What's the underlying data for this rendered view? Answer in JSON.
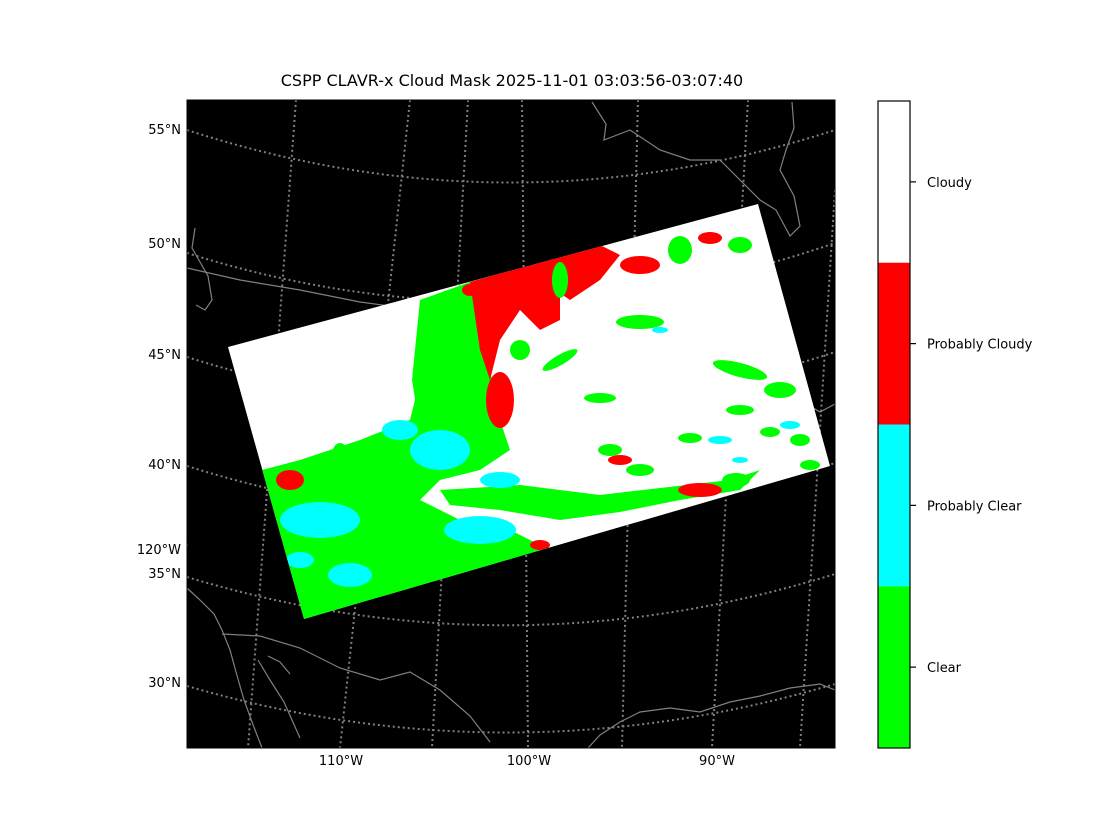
{
  "title": "CSPP CLAVR-x Cloud Mask 2025-11-01 03:03:56-03:07:40",
  "map": {
    "background_color": "#000000",
    "graticule_color": "#808080",
    "border_color": "#808080",
    "lat_labels": [
      "55°N",
      "50°N",
      "45°N",
      "40°N",
      "35°N",
      "30°N"
    ],
    "lon_labels_left": [
      "120°W"
    ],
    "lon_labels_bottom": [
      "110°W",
      "100°W",
      "90°W"
    ]
  },
  "colorbar": {
    "categories": [
      {
        "label": "Cloudy",
        "color": "#ffffff"
      },
      {
        "label": "Probably Cloudy",
        "color": "#ff0000"
      },
      {
        "label": "Probably Clear",
        "color": "#00ffff"
      },
      {
        "label": "Clear",
        "color": "#00ff00"
      }
    ]
  }
}
